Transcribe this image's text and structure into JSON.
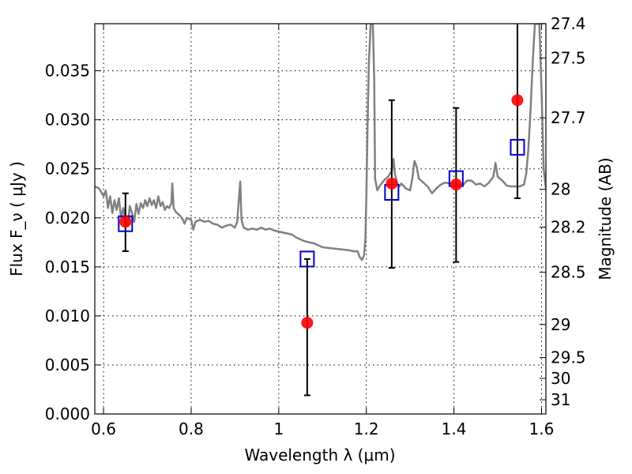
{
  "chart_data": {
    "type": "scatter",
    "xlabel": "Wavelength  λ (μm)",
    "ylabel": "Flux  F_ν  ( μJy )",
    "y2label": "Magnitude (AB)",
    "xlim": [
      0.58,
      1.61
    ],
    "ylim": [
      0.0,
      0.0398
    ],
    "grid": true,
    "x_ticks": [
      {
        "value": 0.6,
        "label": "0.6"
      },
      {
        "value": 0.8,
        "label": "0.8"
      },
      {
        "value": 1.0,
        "label": "1"
      },
      {
        "value": 1.2,
        "label": "1.2"
      },
      {
        "value": 1.4,
        "label": "1.4"
      },
      {
        "value": 1.6,
        "label": "1.6"
      }
    ],
    "y_ticks": [
      {
        "value": 0.0,
        "label": "0.000"
      },
      {
        "value": 0.005,
        "label": "0.005"
      },
      {
        "value": 0.01,
        "label": "0.010"
      },
      {
        "value": 0.015,
        "label": "0.015"
      },
      {
        "value": 0.02,
        "label": "0.020"
      },
      {
        "value": 0.025,
        "label": "0.025"
      },
      {
        "value": 0.03,
        "label": "0.030"
      },
      {
        "value": 0.035,
        "label": "0.035"
      }
    ],
    "y2_ticks": [
      {
        "value": 27.4,
        "label": "27.4"
      },
      {
        "value": 27.5,
        "label": "27.5"
      },
      {
        "value": 27.7,
        "label": "27.7"
      },
      {
        "value": 28.0,
        "label": "28"
      },
      {
        "value": 28.2,
        "label": "28.2"
      },
      {
        "value": 28.5,
        "label": "28.5"
      },
      {
        "value": 29.0,
        "label": "29"
      },
      {
        "value": 29.5,
        "label": "29.5"
      },
      {
        "value": 30.0,
        "label": "30"
      },
      {
        "value": 31.0,
        "label": "31"
      }
    ],
    "model_spectrum": {
      "color": "#808080",
      "points": [
        [
          0.58,
          0.0232
        ],
        [
          0.59,
          0.023
        ],
        [
          0.595,
          0.0226
        ],
        [
          0.6,
          0.0222
        ],
        [
          0.605,
          0.0228
        ],
        [
          0.61,
          0.021
        ],
        [
          0.615,
          0.0222
        ],
        [
          0.62,
          0.0205
        ],
        [
          0.625,
          0.0218
        ],
        [
          0.63,
          0.0208
        ],
        [
          0.635,
          0.022
        ],
        [
          0.64,
          0.02
        ],
        [
          0.645,
          0.021
        ],
        [
          0.65,
          0.0198
        ],
        [
          0.655,
          0.0192
        ],
        [
          0.66,
          0.0212
        ],
        [
          0.665,
          0.0205
        ],
        [
          0.67,
          0.0196
        ],
        [
          0.675,
          0.0214
        ],
        [
          0.68,
          0.0204
        ],
        [
          0.685,
          0.0215
        ],
        [
          0.69,
          0.021
        ],
        [
          0.695,
          0.0218
        ],
        [
          0.7,
          0.0212
        ],
        [
          0.705,
          0.022
        ],
        [
          0.71,
          0.0213
        ],
        [
          0.715,
          0.0218
        ],
        [
          0.72,
          0.021
        ],
        [
          0.725,
          0.0222
        ],
        [
          0.73,
          0.0212
        ],
        [
          0.735,
          0.0216
        ],
        [
          0.74,
          0.0208
        ],
        [
          0.745,
          0.0212
        ],
        [
          0.75,
          0.021
        ],
        [
          0.755,
          0.0215
        ],
        [
          0.757,
          0.0235
        ],
        [
          0.76,
          0.021
        ],
        [
          0.765,
          0.0206
        ],
        [
          0.77,
          0.0204
        ],
        [
          0.775,
          0.0202
        ],
        [
          0.78,
          0.0199
        ],
        [
          0.785,
          0.0194
        ],
        [
          0.79,
          0.02
        ],
        [
          0.8,
          0.0198
        ],
        [
          0.805,
          0.0188
        ],
        [
          0.81,
          0.0196
        ],
        [
          0.82,
          0.0198
        ],
        [
          0.83,
          0.0196
        ],
        [
          0.84,
          0.0197
        ],
        [
          0.85,
          0.0194
        ],
        [
          0.86,
          0.0193
        ],
        [
          0.87,
          0.019
        ],
        [
          0.88,
          0.0192
        ],
        [
          0.89,
          0.0193
        ],
        [
          0.9,
          0.019
        ],
        [
          0.905,
          0.0196
        ],
        [
          0.912,
          0.0237
        ],
        [
          0.915,
          0.0198
        ],
        [
          0.92,
          0.019
        ],
        [
          0.93,
          0.0188
        ],
        [
          0.94,
          0.0189
        ],
        [
          0.95,
          0.0188
        ],
        [
          0.96,
          0.019
        ],
        [
          0.97,
          0.0188
        ],
        [
          0.98,
          0.0189
        ],
        [
          0.99,
          0.0187
        ],
        [
          1.0,
          0.0186
        ],
        [
          1.01,
          0.0185
        ],
        [
          1.02,
          0.0184
        ],
        [
          1.03,
          0.0183
        ],
        [
          1.04,
          0.018
        ],
        [
          1.05,
          0.0178
        ],
        [
          1.06,
          0.0176
        ],
        [
          1.07,
          0.0175
        ],
        [
          1.08,
          0.0174
        ],
        [
          1.09,
          0.0172
        ],
        [
          1.1,
          0.017
        ],
        [
          1.12,
          0.0169
        ],
        [
          1.14,
          0.0168
        ],
        [
          1.16,
          0.0167
        ],
        [
          1.17,
          0.0166
        ],
        [
          1.18,
          0.0166
        ],
        [
          1.185,
          0.016
        ],
        [
          1.19,
          0.0157
        ],
        [
          1.195,
          0.0162
        ],
        [
          1.198,
          0.018
        ],
        [
          1.2,
          0.022
        ],
        [
          1.203,
          0.03
        ],
        [
          1.206,
          0.036
        ],
        [
          1.21,
          0.0398
        ],
        [
          1.215,
          0.0398
        ],
        [
          1.218,
          0.034
        ],
        [
          1.22,
          0.024
        ],
        [
          1.225,
          0.0228
        ],
        [
          1.23,
          0.0232
        ],
        [
          1.24,
          0.0238
        ],
        [
          1.25,
          0.0242
        ],
        [
          1.258,
          0.0248
        ],
        [
          1.262,
          0.026
        ],
        [
          1.265,
          0.0246
        ],
        [
          1.27,
          0.0236
        ],
        [
          1.275,
          0.0232
        ],
        [
          1.28,
          0.0235
        ],
        [
          1.29,
          0.023
        ],
        [
          1.3,
          0.0228
        ],
        [
          1.305,
          0.024
        ],
        [
          1.31,
          0.0258
        ],
        [
          1.315,
          0.0252
        ],
        [
          1.32,
          0.024
        ],
        [
          1.33,
          0.0236
        ],
        [
          1.34,
          0.0232
        ],
        [
          1.35,
          0.0225
        ],
        [
          1.36,
          0.023
        ],
        [
          1.37,
          0.0234
        ],
        [
          1.38,
          0.0236
        ],
        [
          1.39,
          0.0235
        ],
        [
          1.4,
          0.0236
        ],
        [
          1.41,
          0.0234
        ],
        [
          1.42,
          0.0233
        ],
        [
          1.43,
          0.0238
        ],
        [
          1.44,
          0.0238
        ],
        [
          1.45,
          0.0234
        ],
        [
          1.46,
          0.0235
        ],
        [
          1.47,
          0.0232
        ],
        [
          1.48,
          0.0236
        ],
        [
          1.49,
          0.0242
        ],
        [
          1.495,
          0.0256
        ],
        [
          1.5,
          0.0242
        ],
        [
          1.51,
          0.0238
        ],
        [
          1.515,
          0.0236
        ],
        [
          1.52,
          0.0233
        ],
        [
          1.53,
          0.0232
        ],
        [
          1.54,
          0.0232
        ],
        [
          1.55,
          0.0232
        ],
        [
          1.56,
          0.0234
        ],
        [
          1.565,
          0.0245
        ],
        [
          1.57,
          0.027
        ],
        [
          1.575,
          0.031
        ],
        [
          1.58,
          0.036
        ],
        [
          1.585,
          0.0398
        ],
        [
          1.595,
          0.0398
        ],
        [
          1.6,
          0.033
        ],
        [
          1.605,
          0.025
        ],
        [
          1.61,
          0.023
        ]
      ]
    },
    "observed": {
      "color": "#ff0000",
      "points": [
        {
          "x": 0.65,
          "y": 0.0196,
          "err_low": 0.0166,
          "err_high": 0.0225
        },
        {
          "x": 1.065,
          "y": 0.0093,
          "err_low": 0.0019,
          "err_high": 0.0158
        },
        {
          "x": 1.258,
          "y": 0.0235,
          "err_low": 0.0149,
          "err_high": 0.032
        },
        {
          "x": 1.405,
          "y": 0.0234,
          "err_low": 0.0155,
          "err_high": 0.0312
        },
        {
          "x": 1.545,
          "y": 0.032,
          "err_low": 0.022,
          "err_high": 0.0398
        }
      ]
    },
    "model_photometry": {
      "color": "#0000cc",
      "points": [
        {
          "x": 0.65,
          "y": 0.0194
        },
        {
          "x": 1.065,
          "y": 0.0158
        },
        {
          "x": 1.258,
          "y": 0.0226
        },
        {
          "x": 1.405,
          "y": 0.024
        },
        {
          "x": 1.545,
          "y": 0.0272
        }
      ]
    }
  }
}
